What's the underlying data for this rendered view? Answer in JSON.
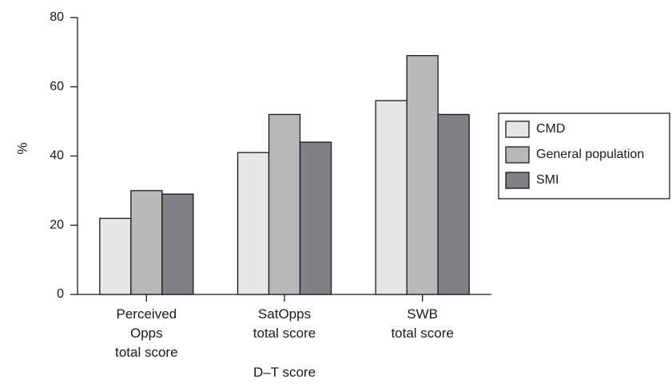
{
  "chart_data": {
    "type": "bar",
    "categories": [
      [
        "Perceived",
        "Opps",
        "total score"
      ],
      [
        "SatOpps",
        "total score"
      ],
      [
        "SWB",
        "total score"
      ]
    ],
    "series": [
      {
        "name": "CMD",
        "color": "#e6e7e9",
        "values": [
          22,
          41,
          56
        ]
      },
      {
        "name": "General population",
        "color": "#b7b8ba",
        "values": [
          30,
          52,
          69
        ]
      },
      {
        "name": "SMI",
        "color": "#808184",
        "values": [
          29,
          44,
          52
        ]
      }
    ],
    "yticks": [
      0,
      20,
      40,
      60,
      80
    ],
    "ylim": [
      0,
      80
    ],
    "xlabel": "D–T score",
    "ylabel": "%",
    "legend_position": "right",
    "grid": false
  }
}
